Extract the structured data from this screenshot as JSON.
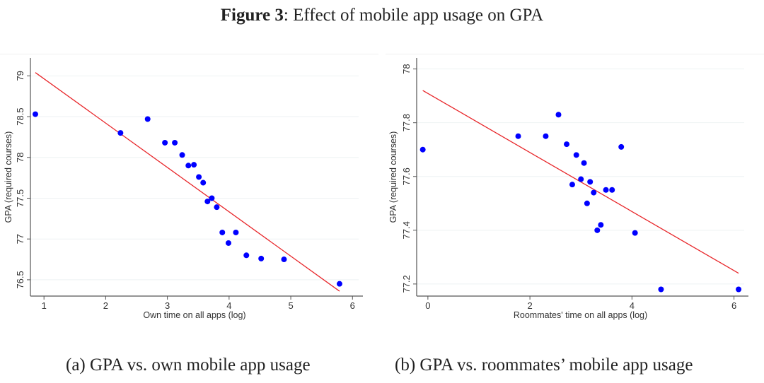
{
  "figure": {
    "label": "Figure 3",
    "title_rest": ": Effect of mobile app usage on GPA"
  },
  "captions": {
    "a": "(a) GPA vs. own mobile app usage",
    "b": "(b) GPA vs. roommates’ mobile app usage"
  },
  "chart_data": [
    {
      "id": "a",
      "type": "scatter",
      "title": "",
      "xlabel": "Own time on all apps (log)",
      "ylabel": "GPA (required courses)",
      "xlim": [
        0.78,
        6.1
      ],
      "ylim": [
        76.3,
        79.15
      ],
      "xticks": [
        1,
        2,
        3,
        4,
        5,
        6
      ],
      "xtick_labels": [
        "1",
        "2",
        "3",
        "4",
        "5",
        "6"
      ],
      "yticks": [
        76.5,
        77,
        77.5,
        78,
        78.5,
        79
      ],
      "ytick_labels": [
        "76.5",
        "77",
        "77.5",
        "78",
        "78.5",
        "79"
      ],
      "grid": true,
      "point_color": "#0000ff",
      "line_color": "#e8262a",
      "points": [
        [
          0.86,
          78.53
        ],
        [
          2.24,
          78.3
        ],
        [
          2.68,
          78.47
        ],
        [
          2.96,
          78.18
        ],
        [
          3.12,
          78.18
        ],
        [
          3.24,
          78.03
        ],
        [
          3.34,
          77.9
        ],
        [
          3.43,
          77.91
        ],
        [
          3.51,
          77.76
        ],
        [
          3.58,
          77.69
        ],
        [
          3.65,
          77.46
        ],
        [
          3.72,
          77.5
        ],
        [
          3.8,
          77.39
        ],
        [
          3.89,
          77.08
        ],
        [
          3.99,
          76.95
        ],
        [
          4.11,
          77.08
        ],
        [
          4.28,
          76.8
        ],
        [
          4.52,
          76.76
        ],
        [
          4.89,
          76.75
        ],
        [
          5.79,
          76.45
        ]
      ],
      "fit_line": [
        [
          0.86,
          79.04
        ],
        [
          5.79,
          76.36
        ]
      ]
    },
    {
      "id": "b",
      "type": "scatter",
      "title": "",
      "xlabel": "Roommates' time on all apps (log)",
      "ylabel": "GPA (required courses)",
      "xlim": [
        -0.22,
        6.2
      ],
      "ylim": [
        77.155,
        78.02
      ],
      "xticks": [
        0,
        2,
        4,
        6
      ],
      "xtick_labels": [
        "0",
        "2",
        "4",
        "6"
      ],
      "yticks": [
        77.2,
        77.4,
        77.6,
        77.8,
        78
      ],
      "ytick_labels": [
        "77.2",
        "77.4",
        "77.6",
        "77.8",
        "78"
      ],
      "grid": true,
      "point_color": "#0000ff",
      "line_color": "#e8262a",
      "points": [
        [
          -0.1,
          77.7
        ],
        [
          1.77,
          77.75
        ],
        [
          2.31,
          77.75
        ],
        [
          2.56,
          77.83
        ],
        [
          2.72,
          77.72
        ],
        [
          2.83,
          77.57
        ],
        [
          2.91,
          77.68
        ],
        [
          3.0,
          77.59
        ],
        [
          3.06,
          77.65
        ],
        [
          3.12,
          77.5
        ],
        [
          3.18,
          77.58
        ],
        [
          3.25,
          77.54
        ],
        [
          3.32,
          77.4
        ],
        [
          3.39,
          77.42
        ],
        [
          3.49,
          77.55
        ],
        [
          3.61,
          77.55
        ],
        [
          3.79,
          77.71
        ],
        [
          4.06,
          77.39
        ],
        [
          4.57,
          77.18
        ],
        [
          6.09,
          77.18
        ]
      ],
      "fit_line": [
        [
          -0.1,
          77.92
        ],
        [
          6.09,
          77.24
        ]
      ]
    }
  ]
}
